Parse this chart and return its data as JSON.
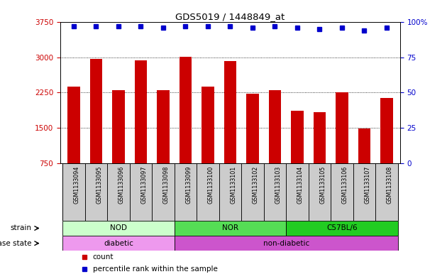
{
  "title": "GDS5019 / 1448849_at",
  "samples": [
    "GSM1133094",
    "GSM1133095",
    "GSM1133096",
    "GSM1133097",
    "GSM1133098",
    "GSM1133099",
    "GSM1133100",
    "GSM1133101",
    "GSM1133102",
    "GSM1133103",
    "GSM1133104",
    "GSM1133105",
    "GSM1133106",
    "GSM1133107",
    "GSM1133108"
  ],
  "counts": [
    2380,
    2970,
    2310,
    2940,
    2310,
    3020,
    2380,
    2930,
    2220,
    2310,
    1870,
    1840,
    2260,
    1490,
    2130
  ],
  "percentiles": [
    97,
    97,
    97,
    97,
    96,
    97,
    97,
    97,
    96,
    97,
    96,
    95,
    96,
    94,
    96
  ],
  "ylim_left": [
    750,
    3750
  ],
  "ylim_right": [
    0,
    100
  ],
  "yticks_left": [
    750,
    1500,
    2250,
    3000,
    3750
  ],
  "yticks_right": [
    0,
    25,
    50,
    75,
    100
  ],
  "ytick_labels_right": [
    "0",
    "25",
    "50",
    "75",
    "100%"
  ],
  "bar_color": "#cc0000",
  "dot_color": "#0000cc",
  "grid_color": "#000000",
  "strain_groups": [
    {
      "label": "NOD",
      "start": 0,
      "end": 5,
      "color": "#ccffcc"
    },
    {
      "label": "NOR",
      "start": 5,
      "end": 10,
      "color": "#55dd55"
    },
    {
      "label": "C57BL/6",
      "start": 10,
      "end": 15,
      "color": "#22cc22"
    }
  ],
  "disease_groups": [
    {
      "label": "diabetic",
      "start": 0,
      "end": 5,
      "color": "#ee99ee"
    },
    {
      "label": "non-diabetic",
      "start": 5,
      "end": 15,
      "color": "#cc55cc"
    }
  ],
  "xtick_bg": "#cccccc",
  "legend_items": [
    {
      "color": "#cc0000",
      "label": "count"
    },
    {
      "color": "#0000cc",
      "label": "percentile rank within the sample"
    }
  ]
}
